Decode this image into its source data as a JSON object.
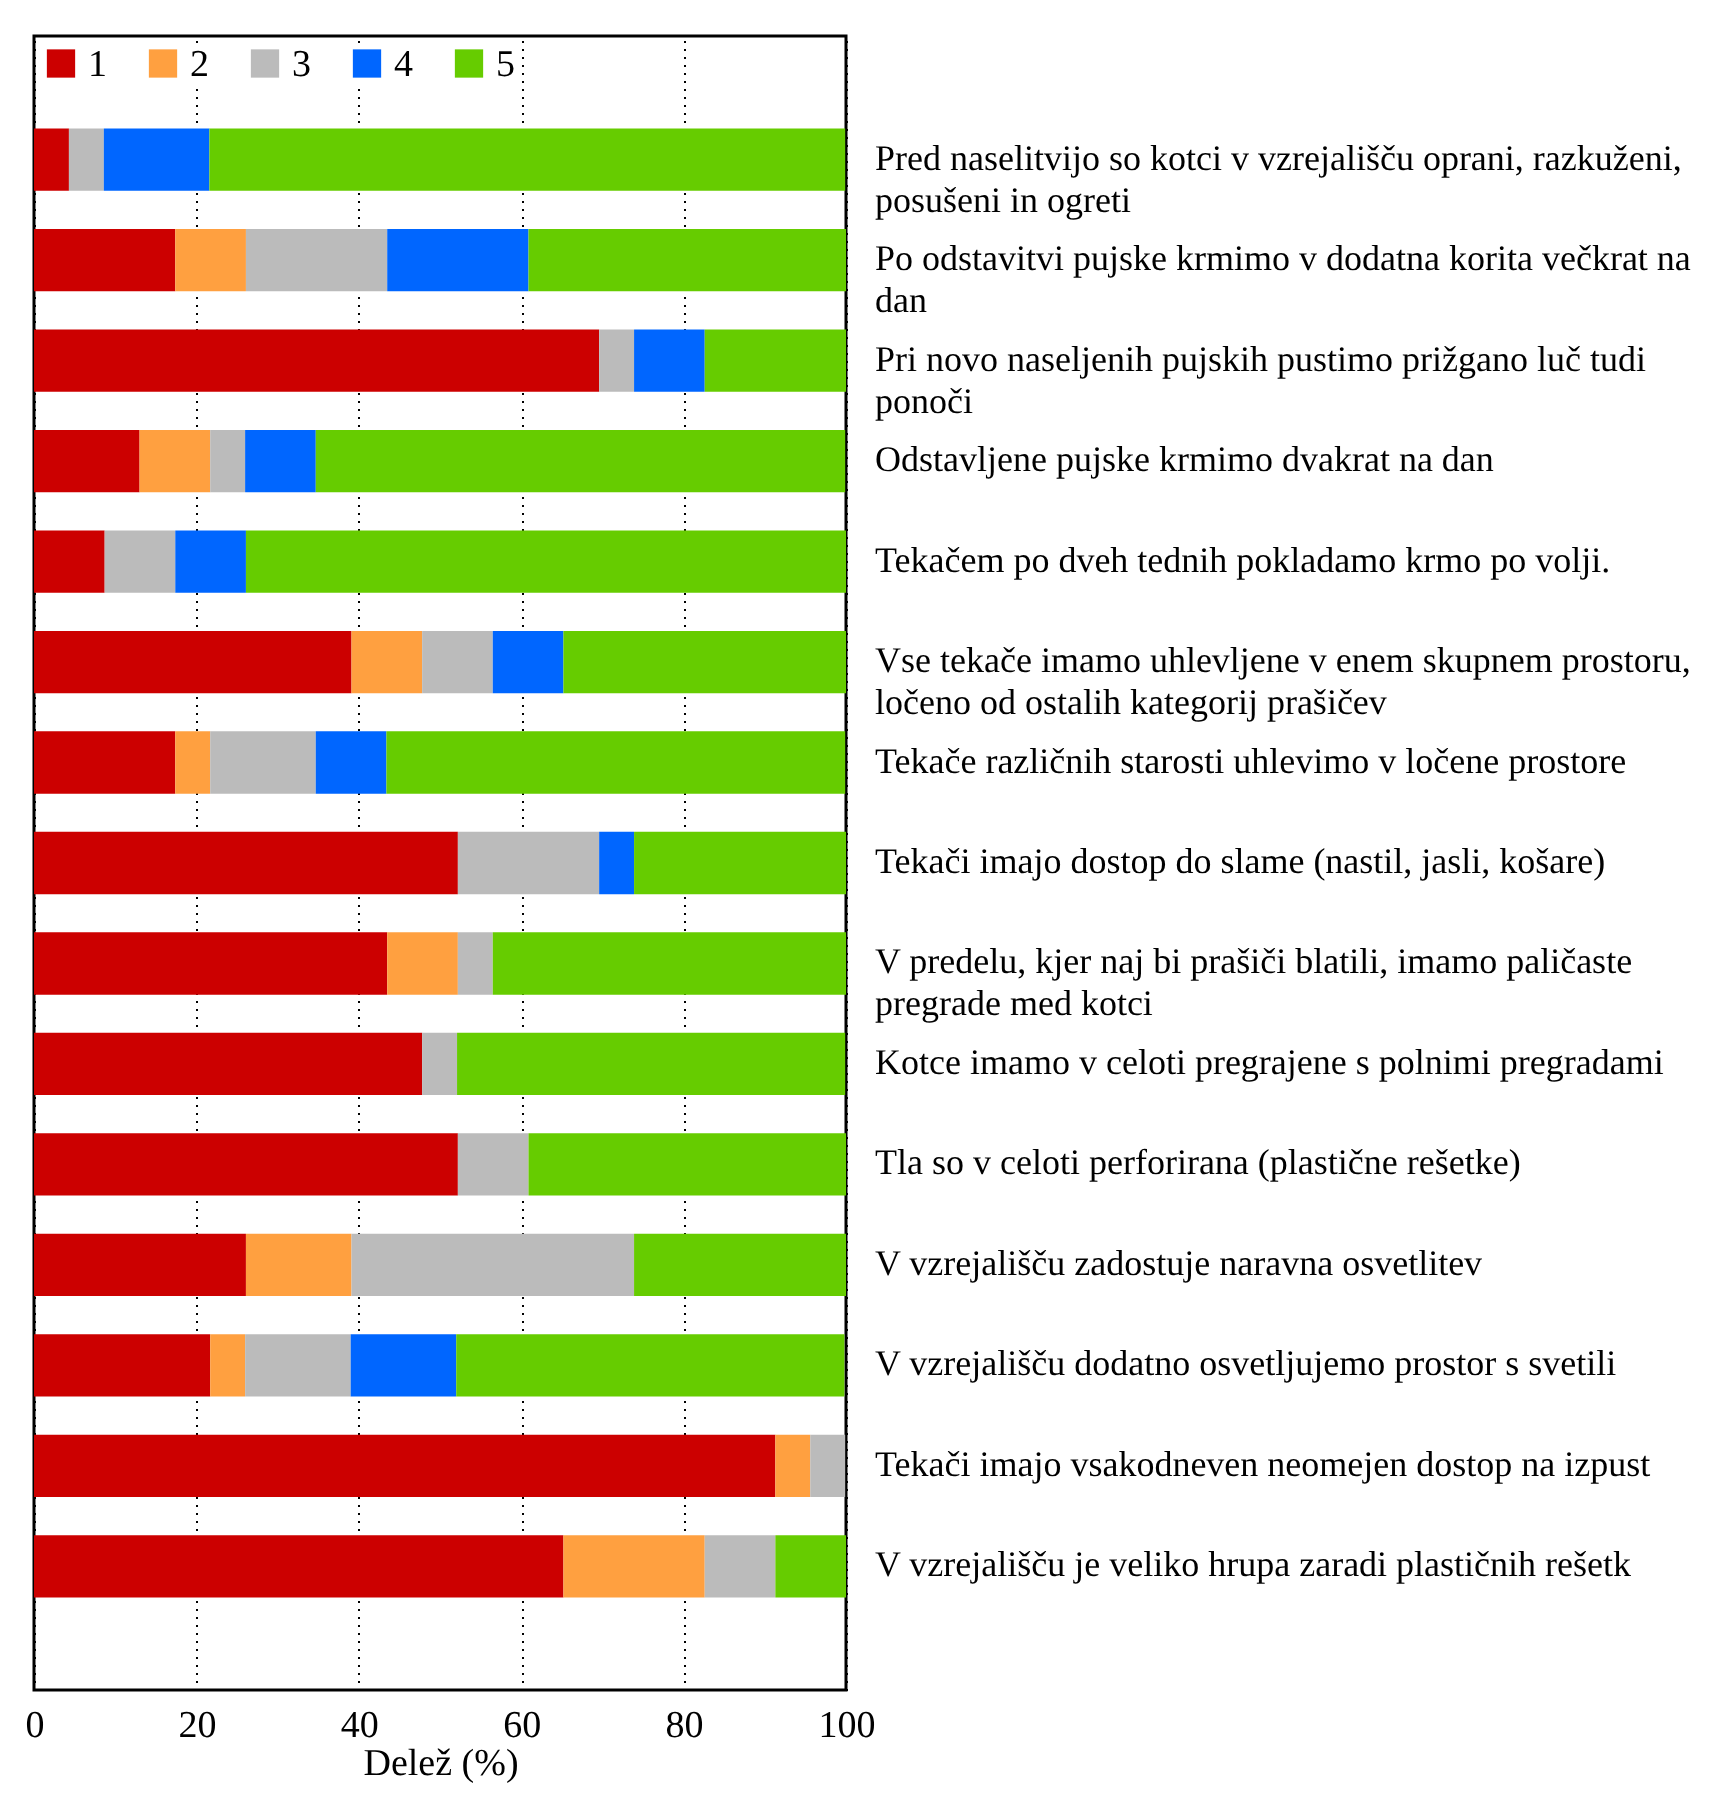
{
  "chart_data": {
    "type": "bar",
    "orientation": "horizontal",
    "stacked": true,
    "xlabel": "Delež (%)",
    "categories": [
      "Pred naselitvijo so kotci v vzrejališču oprani, razkuženi, posušeni in ogreti",
      "Po odstavitvi pujske krmimo v dodatna korita večkrat na dan",
      "Pri novo naseljenih pujskih pustimo prižgano luč tudi ponoči",
      "Odstavljene pujske krmimo dvakrat na dan",
      "Tekačem po dveh tednih pokladamo krmo po volji.",
      "Vse tekače imamo uhlevljene v enem skupnem prostoru, ločeno od ostalih kategorij prašičev",
      "Tekače različnih starosti uhlevimo v ločene prostore",
      "Tekači imajo dostop do slame (nastil, jasli, košare)",
      "V predelu, kjer naj bi prašiči blatili, imamo paličaste pregrade med kotci",
      "Kotce imamo v celoti pregrajene s polnimi pregradami",
      "Tla so v celoti perforirana (plastične rešetke)",
      "V vzrejališču zadostuje naravna osvetlitev",
      "V vzrejališču dodatno osvetljujemo prostor s svetili",
      "Tekači imajo vsakodneven neomejen dostop na izpust",
      "V vzrejališču je veliko hrupa zaradi plastičnih rešetk"
    ],
    "series": [
      {
        "name": "1",
        "color": "#cc0000",
        "values": [
          4.3,
          17.4,
          69.6,
          13.0,
          8.7,
          39.1,
          17.4,
          52.2,
          43.5,
          47.8,
          52.2,
          26.1,
          21.7,
          91.3,
          65.2
        ]
      },
      {
        "name": "2",
        "color": "#ffa040",
        "values": [
          0,
          8.7,
          0,
          8.7,
          0,
          8.7,
          4.3,
          0,
          8.7,
          0,
          0,
          13.0,
          4.3,
          4.3,
          17.4
        ]
      },
      {
        "name": "3",
        "color": "#bbbbbb",
        "values": [
          4.3,
          17.4,
          4.3,
          4.3,
          8.7,
          8.7,
          13.0,
          17.4,
          4.3,
          4.3,
          8.7,
          34.8,
          13.0,
          4.3,
          8.7
        ]
      },
      {
        "name": "4",
        "color": "#0066ff",
        "values": [
          13.0,
          17.4,
          8.7,
          8.7,
          8.7,
          8.7,
          8.7,
          4.3,
          0,
          0,
          0,
          0,
          13.0,
          0,
          0
        ]
      },
      {
        "name": "5",
        "color": "#66cc00",
        "values": [
          78.3,
          39.1,
          17.4,
          65.2,
          73.9,
          34.8,
          56.5,
          26.1,
          43.5,
          47.8,
          39.1,
          26.1,
          47.8,
          0,
          8.7
        ]
      }
    ],
    "xlim": [
      0,
      100
    ],
    "xticks": [
      0,
      20,
      40,
      60,
      80,
      100
    ],
    "grid": "x",
    "legend": "top left"
  }
}
